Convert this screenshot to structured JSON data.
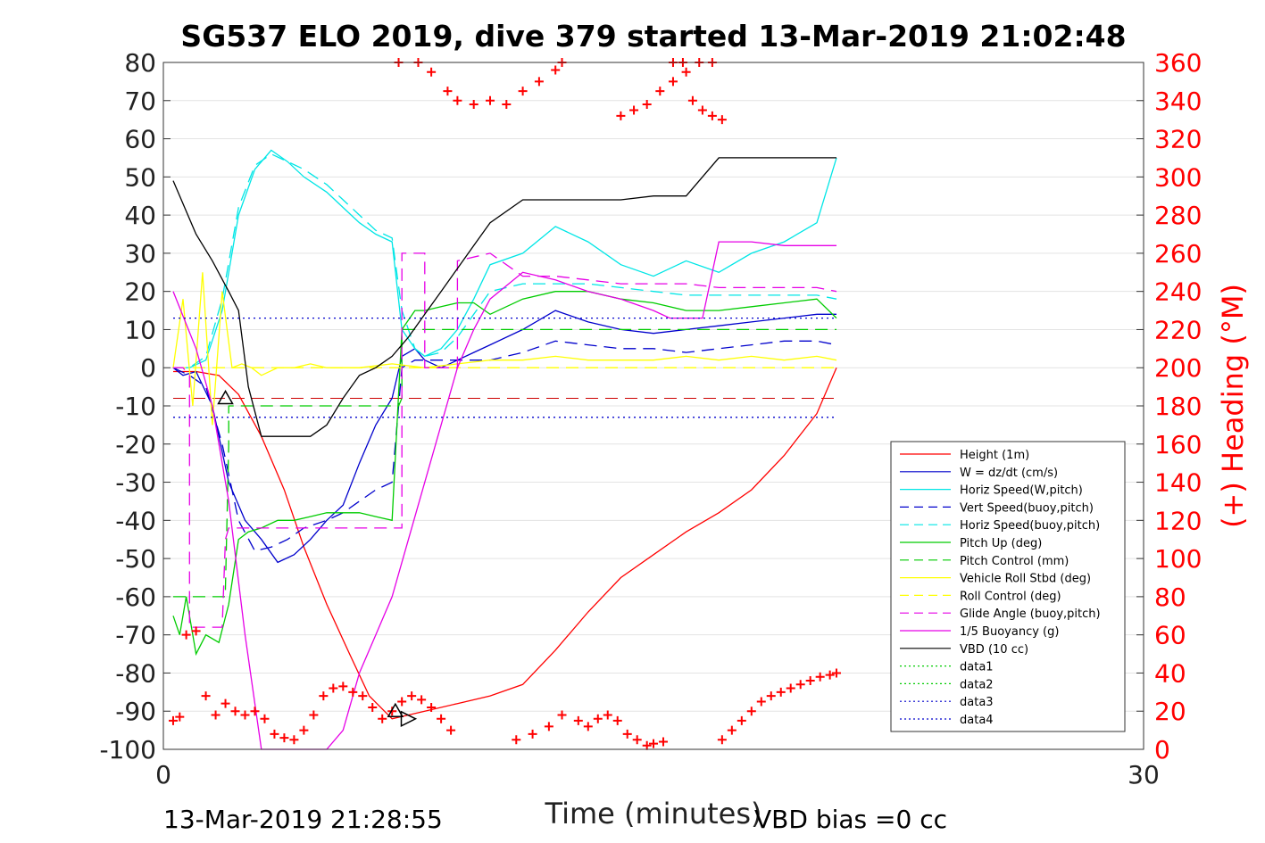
{
  "chart_data": {
    "type": "line",
    "title": "SG537 ELO 2019, dive 379 started 13-Mar-2019 21:02:48",
    "xlabel": "Time (minutes)",
    "ylabel_right": "(+) Heading (°M)",
    "xlim": [
      0,
      30
    ],
    "ylim_left": [
      -100,
      80
    ],
    "ylim_right": [
      0,
      360
    ],
    "x_ticks": [
      "0",
      "30"
    ],
    "y_ticks_left": [
      "80",
      "70",
      "60",
      "50",
      "40",
      "30",
      "20",
      "10",
      "0",
      "-10",
      "-20",
      "-30",
      "-40",
      "-50",
      "-60",
      "-70",
      "-80",
      "-90",
      "-100"
    ],
    "y_ticks_right": [
      "360",
      "340",
      "320",
      "300",
      "280",
      "260",
      "240",
      "220",
      "200",
      "180",
      "160",
      "140",
      "120",
      "100",
      "80",
      "60",
      "40",
      "20",
      "0"
    ],
    "grid": "horizontal",
    "legend_position": "lower-right",
    "footer_left": "13-Mar-2019 21:28:55",
    "footer_right": "VBD bias =0 cc",
    "series": [
      {
        "name": "Height (1m)",
        "color": "#ff0000",
        "style": "solid",
        "x": [
          0.3,
          1.0,
          1.7,
          2.3,
          3.0,
          3.7,
          4.3,
          5.0,
          5.7,
          6.3,
          7.0,
          8.0,
          9.0,
          10.0,
          11.0,
          12.0,
          13.0,
          14.0,
          15.0,
          16.0,
          17.0,
          18.0,
          19.0,
          20.0,
          20.6
        ],
        "y": [
          -1,
          -1,
          -2,
          -7,
          -18,
          -32,
          -47,
          -62,
          -75,
          -86,
          -92,
          -90,
          -88,
          -86,
          -83,
          -74,
          -64,
          -55,
          -49,
          -43,
          -38,
          -32,
          -23,
          -12,
          0
        ]
      },
      {
        "name": "W = dz/dt (cm/s)",
        "color": "#0000cc",
        "style": "solid",
        "x": [
          0.3,
          0.6,
          1.0,
          1.5,
          2.0,
          2.5,
          3.0,
          3.5,
          4.0,
          4.5,
          5.0,
          5.5,
          6.0,
          6.5,
          7.0,
          7.3,
          7.7,
          8.0,
          8.5,
          9.0,
          9.5,
          10.0,
          11.0,
          12.0,
          13.0,
          14.0,
          15.0,
          16.0,
          17.0,
          18.0,
          19.0,
          20.0,
          20.6
        ],
        "y": [
          0,
          -2,
          -1,
          -10,
          -30,
          -40,
          -45,
          -51,
          -49,
          -45,
          -40,
          -36,
          -25,
          -15,
          -8,
          3,
          5,
          2,
          0,
          2,
          4,
          6,
          10,
          15,
          12,
          10,
          9,
          10,
          11,
          12,
          13,
          14,
          14
        ]
      },
      {
        "name": "Horiz Speed(W,pitch)",
        "color": "#00e6e6",
        "style": "solid",
        "x": [
          0.3,
          0.8,
          1.3,
          1.8,
          2.3,
          2.8,
          3.3,
          3.8,
          4.3,
          5.0,
          5.5,
          6.0,
          6.5,
          7.0,
          7.3,
          7.7,
          8.0,
          8.5,
          9.0,
          9.5,
          10.0,
          11.0,
          12.0,
          13.0,
          14.0,
          15.0,
          16.0,
          17.0,
          18.0,
          19.0,
          20.0,
          20.6
        ],
        "y": [
          0,
          0,
          2,
          15,
          40,
          52,
          57,
          54,
          50,
          46,
          42,
          38,
          35,
          33,
          10,
          5,
          3,
          5,
          10,
          18,
          27,
          30,
          37,
          33,
          27,
          24,
          28,
          25,
          30,
          33,
          38,
          55
        ]
      },
      {
        "name": "Vert Speed(buoy,pitch)",
        "color": "#0000cc",
        "style": "dashed",
        "x": [
          0.3,
          0.8,
          1.3,
          1.8,
          2.3,
          2.8,
          3.3,
          3.8,
          4.3,
          5.0,
          5.5,
          6.0,
          6.5,
          7.0,
          7.3,
          7.7,
          8.0,
          8.5,
          9.0,
          10.0,
          11.0,
          12.0,
          13.0,
          14.0,
          15.0,
          16.0,
          17.0,
          18.0,
          19.0,
          20.0,
          20.6
        ],
        "y": [
          0,
          -2,
          -5,
          -20,
          -40,
          -48,
          -47,
          -45,
          -42,
          -40,
          -38,
          -35,
          -32,
          -30,
          0,
          2,
          2,
          2,
          2,
          2,
          4,
          7,
          6,
          5,
          5,
          4,
          5,
          6,
          7,
          7,
          6
        ]
      },
      {
        "name": "Horiz Speed(buoy,pitch)",
        "color": "#00e6e6",
        "style": "dashed",
        "x": [
          0.3,
          0.8,
          1.3,
          1.8,
          2.3,
          2.8,
          3.3,
          3.8,
          4.3,
          5.0,
          5.5,
          6.0,
          6.5,
          7.0,
          7.3,
          7.7,
          8.0,
          8.5,
          9.0,
          9.5,
          10.0,
          11.0,
          12.0,
          13.0,
          14.0,
          15.0,
          16.0,
          17.0,
          18.0,
          19.0,
          20.0,
          20.6
        ],
        "y": [
          0,
          0,
          3,
          18,
          42,
          53,
          56,
          54,
          52,
          48,
          44,
          40,
          36,
          34,
          15,
          5,
          3,
          4,
          8,
          14,
          20,
          22,
          22,
          22,
          21,
          20,
          19,
          19,
          19,
          19,
          19,
          18
        ]
      },
      {
        "name": "Pitch Up (deg)",
        "color": "#00cc00",
        "style": "solid",
        "x": [
          0.3,
          0.5,
          0.7,
          1.0,
          1.3,
          1.7,
          2.0,
          2.3,
          2.6,
          3.0,
          3.5,
          4.0,
          4.5,
          5.0,
          5.5,
          6.0,
          6.5,
          7.0,
          7.3,
          7.7,
          8.0,
          8.5,
          9.0,
          9.5,
          10.0,
          11.0,
          12.0,
          13.0,
          14.0,
          15.0,
          16.0,
          17.0,
          18.0,
          19.0,
          20.0,
          20.6
        ],
        "y": [
          -65,
          -70,
          -60,
          -75,
          -70,
          -72,
          -62,
          -45,
          -43,
          -42,
          -40,
          -40,
          -39,
          -38,
          -38,
          -38,
          -39,
          -40,
          10,
          15,
          15,
          16,
          17,
          17,
          14,
          18,
          20,
          20,
          18,
          17,
          15,
          15,
          16,
          17,
          18,
          13
        ]
      },
      {
        "name": "Pitch Control (mm)",
        "color": "#00cc00",
        "style": "dashed",
        "x": [
          0.3,
          1.9,
          1.9,
          2.0,
          2.0,
          7.2,
          7.3,
          7.3,
          20.6
        ],
        "y": [
          -60,
          -60,
          -58,
          -20,
          -10,
          -10,
          -8,
          10,
          10
        ]
      },
      {
        "name": "Vehicle Roll Stbd (deg)",
        "color": "#ffff00",
        "style": "solid",
        "x": [
          0.3,
          0.6,
          0.9,
          1.2,
          1.5,
          1.8,
          2.1,
          2.4,
          2.7,
          3.0,
          3.5,
          4.0,
          4.5,
          5.0,
          6.0,
          7.0,
          8.0,
          9.0,
          10.0,
          11.0,
          12.0,
          13.0,
          14.0,
          15.0,
          16.0,
          17.0,
          18.0,
          19.0,
          20.0,
          20.6
        ],
        "y": [
          0,
          18,
          -10,
          25,
          -15,
          20,
          0,
          1,
          0,
          -2,
          0,
          0,
          1,
          0,
          0,
          1,
          0,
          1,
          2,
          2,
          3,
          2,
          2,
          2,
          3,
          2,
          3,
          2,
          3,
          2
        ]
      },
      {
        "name": "Roll Control (deg)",
        "color": "#ffff00",
        "style": "dashed",
        "x": [
          0.3,
          20.6
        ],
        "y": [
          0,
          0
        ]
      },
      {
        "name": "Glide Angle (buoy,pitch)",
        "color": "#e600e6",
        "style": "dashed",
        "x": [
          0.3,
          0.6,
          0.8,
          0.8,
          1.8,
          1.9,
          2.0,
          7.3,
          7.3,
          8.0,
          8.0,
          9.0,
          9.0,
          10.0,
          11.0,
          12.0,
          13.0,
          14.0,
          15.0,
          16.0,
          17.0,
          18.0,
          19.0,
          20.0,
          20.6
        ],
        "y": [
          0,
          0,
          -2,
          -68,
          -68,
          -45,
          -42,
          -42,
          30,
          30,
          0,
          0,
          28,
          30,
          24,
          24,
          23,
          22,
          22,
          22,
          21,
          21,
          21,
          21,
          20
        ]
      },
      {
        "name": "1/5 Buoyancy (g)",
        "color": "#e600e6",
        "style": "solid",
        "x": [
          0.3,
          1.0,
          1.5,
          2.0,
          2.5,
          3.0,
          3.5,
          4.0,
          4.5,
          5.0,
          5.5,
          6.0,
          6.5,
          7.0,
          7.5,
          8.0,
          8.5,
          9.0,
          9.5,
          10.0,
          11.0,
          12.0,
          13.0,
          14.0,
          15.0,
          15.5,
          16.0,
          16.5,
          17.0,
          18.0,
          19.0,
          20.0,
          20.6
        ],
        "y": [
          20,
          5,
          -10,
          -35,
          -70,
          -100,
          -100,
          -100,
          -100,
          -100,
          -95,
          -80,
          -70,
          -60,
          -45,
          -30,
          -15,
          0,
          10,
          18,
          25,
          23,
          20,
          18,
          15,
          13,
          13,
          13,
          33,
          33,
          32,
          32,
          32
        ]
      },
      {
        "name": "VBD (10 cc)",
        "color": "#000000",
        "style": "solid",
        "x": [
          0.3,
          1.0,
          1.5,
          2.0,
          2.3,
          2.6,
          3.0,
          3.5,
          4.0,
          4.5,
          5.0,
          5.5,
          6.0,
          6.5,
          7.0,
          7.5,
          8.0,
          8.5,
          9.0,
          9.5,
          10.0,
          11.0,
          12.0,
          13.0,
          14.0,
          15.0,
          16.0,
          17.0,
          18.0,
          19.0,
          20.0,
          20.6
        ],
        "y": [
          49,
          35,
          28,
          20,
          15,
          -5,
          -18,
          -18,
          -18,
          -18,
          -15,
          -8,
          -2,
          0,
          3,
          8,
          14,
          20,
          26,
          32,
          38,
          44,
          44,
          44,
          44,
          45,
          45,
          55,
          55,
          55,
          55,
          55
        ]
      },
      {
        "name": "data1",
        "color": "#00cc00",
        "style": "dotted",
        "x": [],
        "y": []
      },
      {
        "name": "data2",
        "color": "#00cc00",
        "style": "dotted",
        "x": [],
        "y": []
      },
      {
        "name": "data3",
        "color": "#0000cc",
        "style": "dotted",
        "x": [
          0.3,
          20.6
        ],
        "y": [
          13,
          13
        ]
      },
      {
        "name": "data4",
        "color": "#0000cc",
        "style": "dotted",
        "x": [
          0.3,
          20.6
        ],
        "y": [
          -13,
          -13
        ]
      }
    ],
    "reference_line": {
      "color": "#cc0000",
      "style": "dashed",
      "y": -8,
      "x": [
        0.3,
        20.6
      ]
    },
    "heading": {
      "name": "Heading",
      "color": "#ff0000",
      "marker": "+",
      "x": [
        0.3,
        0.5,
        0.7,
        1.0,
        1.3,
        1.6,
        1.9,
        2.2,
        2.5,
        2.8,
        3.1,
        3.4,
        3.7,
        4.0,
        4.3,
        4.6,
        4.9,
        5.2,
        5.5,
        5.8,
        6.1,
        6.4,
        6.7,
        7.0,
        7.3,
        7.6,
        7.9,
        8.2,
        8.5,
        8.8,
        7.2,
        7.8,
        8.2,
        8.7,
        9.0,
        9.5,
        10.0,
        10.5,
        11.0,
        11.5,
        12.0,
        12.2,
        10.8,
        11.3,
        11.8,
        12.2,
        12.7,
        13.0,
        13.3,
        13.6,
        13.9,
        14.2,
        14.5,
        14.8,
        15.0,
        15.3,
        15.6,
        15.9,
        16.2,
        16.5,
        16.8,
        17.1,
        14.0,
        14.4,
        14.8,
        15.2,
        15.6,
        16.0,
        16.4,
        16.8,
        17.1,
        17.4,
        17.7,
        18.0,
        18.3,
        18.6,
        18.9,
        19.2,
        19.5,
        19.8,
        20.1,
        20.4,
        20.6
      ],
      "y": [
        15,
        17,
        60,
        62,
        28,
        18,
        24,
        20,
        18,
        20,
        16,
        8,
        6,
        5,
        10,
        18,
        28,
        32,
        33,
        30,
        28,
        22,
        16,
        20,
        25,
        28,
        26,
        22,
        16,
        10,
        360,
        360,
        355,
        345,
        340,
        338,
        340,
        338,
        345,
        350,
        356,
        360,
        5,
        8,
        12,
        18,
        15,
        12,
        16,
        18,
        15,
        8,
        5,
        2,
        3,
        4,
        360,
        360,
        340,
        335,
        332,
        330,
        332,
        335,
        338,
        345,
        350,
        355,
        360,
        360,
        5,
        10,
        15,
        20,
        25,
        28,
        30,
        32,
        34,
        36,
        38,
        39,
        40
      ]
    },
    "markers": [
      {
        "shape": "triangle",
        "x": 1.9,
        "y": -8
      },
      {
        "shape": "triangle",
        "x": 7.1,
        "y": -90
      },
      {
        "shape": "triangle-right",
        "x": 7.5,
        "y": -92
      }
    ]
  }
}
